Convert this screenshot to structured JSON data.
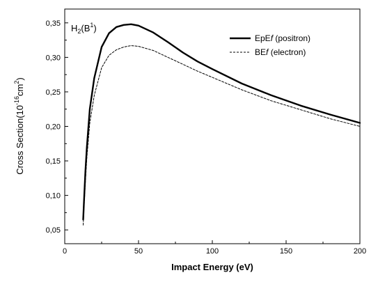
{
  "chart_data": {
    "type": "line",
    "xlabel": "Impact Energy (eV)",
    "ylabel": {
      "main": "Cross Section(10",
      "exp": "-16",
      "unit": "cm",
      "unit_exp": "2",
      "close": ")"
    },
    "annotation": {
      "base": "H",
      "sub": "2",
      "paren_open": "(B",
      "sup": "1",
      "paren_close": ")"
    },
    "xlim": [
      0,
      200
    ],
    "ylim": [
      0.03,
      0.37
    ],
    "xticks": [
      0,
      50,
      100,
      150,
      200
    ],
    "xtick_labels": [
      "0",
      "50",
      "100",
      "150",
      "200"
    ],
    "yticks": [
      0.05,
      0.1,
      0.15,
      0.2,
      0.25,
      0.3,
      0.35
    ],
    "ytick_labels": [
      "0,05",
      "0,10",
      "0,15",
      "0,20",
      "0,25",
      "0,30",
      "0,35"
    ],
    "grid": false,
    "legend_position": "top-right",
    "series": [
      {
        "name": "EpEf (positron)",
        "legend_parts": [
          "EpE",
          "f",
          " (positron)"
        ],
        "style": "solid",
        "x": [
          12.5,
          13,
          14,
          15,
          17,
          20,
          25,
          30,
          35,
          40,
          45,
          50,
          60,
          70,
          80,
          90,
          100,
          120,
          140,
          160,
          180,
          200
        ],
        "y": [
          0.065,
          0.09,
          0.135,
          0.17,
          0.225,
          0.27,
          0.315,
          0.335,
          0.344,
          0.347,
          0.348,
          0.346,
          0.336,
          0.322,
          0.307,
          0.294,
          0.283,
          0.262,
          0.245,
          0.23,
          0.217,
          0.205
        ]
      },
      {
        "name": "BEf (electron)",
        "legend_parts": [
          "BE",
          "f",
          " (electron)"
        ],
        "style": "dashed",
        "x": [
          12.5,
          13,
          14,
          15,
          17,
          20,
          25,
          30,
          35,
          40,
          45,
          50,
          60,
          70,
          80,
          90,
          100,
          120,
          140,
          160,
          180,
          200
        ],
        "y": [
          0.057,
          0.08,
          0.12,
          0.155,
          0.205,
          0.245,
          0.285,
          0.303,
          0.311,
          0.315,
          0.317,
          0.316,
          0.31,
          0.3,
          0.29,
          0.28,
          0.271,
          0.253,
          0.237,
          0.224,
          0.211,
          0.2
        ]
      }
    ]
  }
}
